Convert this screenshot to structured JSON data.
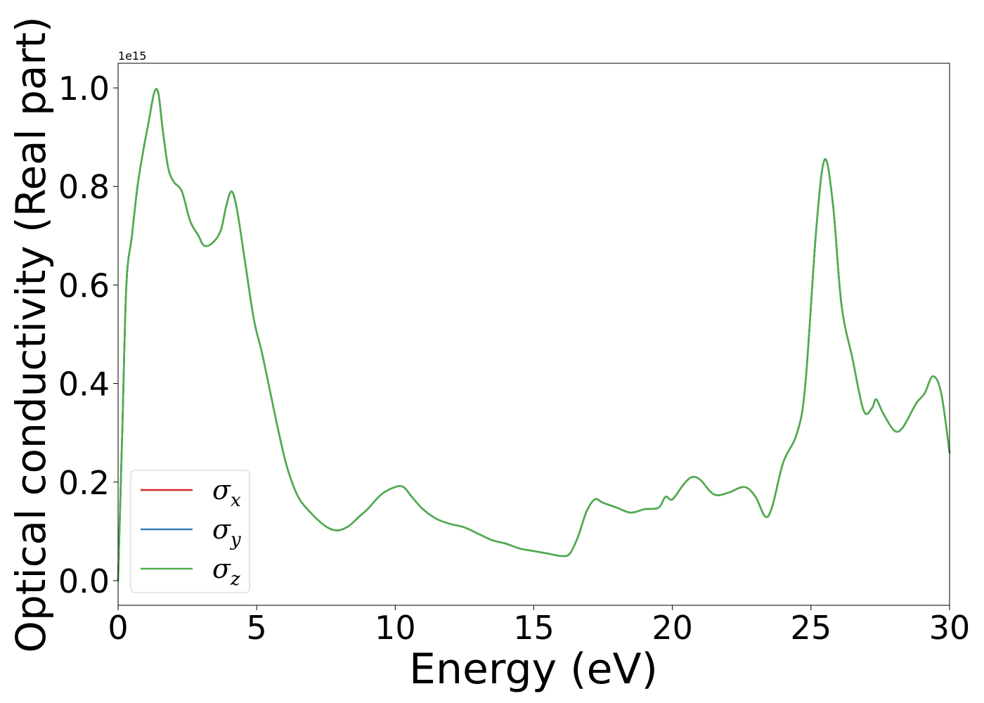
{
  "chart_data": {
    "type": "line",
    "xlabel": "Energy (eV)",
    "ylabel": "Optical conductivity (Real part)",
    "y_offset_label": "1e15",
    "xlim": [
      0,
      30
    ],
    "ylim": [
      -0.05,
      1.05
    ],
    "xticks": [
      0,
      5,
      10,
      15,
      20,
      25,
      30
    ],
    "yticks": [
      0.0,
      0.2,
      0.4,
      0.6,
      0.8,
      1.0
    ],
    "xtick_labels": [
      "0",
      "5",
      "10",
      "15",
      "20",
      "25",
      "30"
    ],
    "ytick_labels": [
      "0.0",
      "0.2",
      "0.4",
      "0.6",
      "0.8",
      "1.0"
    ],
    "grid": false,
    "legend_position": "lower-left",
    "x": [
      0,
      0.15,
      0.3,
      0.5,
      0.7,
      0.9,
      1.1,
      1.3,
      1.45,
      1.6,
      1.8,
      2.0,
      2.3,
      2.6,
      2.9,
      3.1,
      3.4,
      3.7,
      3.9,
      4.1,
      4.3,
      4.6,
      4.9,
      5.2,
      5.5,
      5.8,
      6.1,
      6.5,
      7.0,
      7.5,
      7.9,
      8.3,
      8.7,
      9.0,
      9.5,
      10.0,
      10.3,
      10.6,
      11.0,
      11.5,
      12.0,
      12.5,
      13.0,
      13.5,
      14.0,
      14.5,
      15.0,
      15.5,
      16.0,
      16.3,
      16.6,
      16.9,
      17.2,
      17.5,
      18.0,
      18.5,
      19.0,
      19.5,
      19.75,
      20.0,
      20.4,
      20.7,
      21.0,
      21.5,
      22.0,
      22.6,
      23.0,
      23.35,
      23.6,
      24.0,
      24.5,
      24.8,
      25.2,
      25.5,
      25.8,
      26.1,
      26.5,
      26.9,
      27.2,
      27.35,
      27.6,
      28.0,
      28.3,
      28.8,
      29.1,
      29.4,
      29.7,
      30.0
    ],
    "series": [
      {
        "name": "σx",
        "label_base": "σ",
        "label_sub": "x",
        "color": "#d62728",
        "values": [
          0.0,
          0.3,
          0.6,
          0.7,
          0.8,
          0.87,
          0.93,
          0.99,
          0.99,
          0.92,
          0.84,
          0.81,
          0.79,
          0.73,
          0.7,
          0.68,
          0.685,
          0.71,
          0.76,
          0.79,
          0.75,
          0.64,
          0.53,
          0.46,
          0.38,
          0.3,
          0.23,
          0.17,
          0.135,
          0.11,
          0.102,
          0.11,
          0.13,
          0.145,
          0.175,
          0.19,
          0.19,
          0.17,
          0.145,
          0.125,
          0.115,
          0.108,
          0.095,
          0.082,
          0.075,
          0.065,
          0.06,
          0.055,
          0.05,
          0.055,
          0.09,
          0.14,
          0.165,
          0.158,
          0.148,
          0.138,
          0.145,
          0.148,
          0.17,
          0.165,
          0.195,
          0.21,
          0.205,
          0.175,
          0.178,
          0.19,
          0.17,
          0.13,
          0.15,
          0.24,
          0.3,
          0.4,
          0.72,
          0.855,
          0.76,
          0.56,
          0.45,
          0.345,
          0.35,
          0.368,
          0.34,
          0.305,
          0.31,
          0.36,
          0.38,
          0.415,
          0.38,
          0.26
        ]
      },
      {
        "name": "σy",
        "label_base": "σ",
        "label_sub": "y",
        "color": "#377eb8",
        "values": [
          0.0,
          0.3,
          0.6,
          0.7,
          0.8,
          0.87,
          0.93,
          0.99,
          0.99,
          0.92,
          0.84,
          0.81,
          0.79,
          0.73,
          0.7,
          0.68,
          0.685,
          0.71,
          0.76,
          0.79,
          0.75,
          0.64,
          0.53,
          0.46,
          0.38,
          0.3,
          0.23,
          0.17,
          0.135,
          0.11,
          0.102,
          0.11,
          0.13,
          0.145,
          0.175,
          0.19,
          0.19,
          0.17,
          0.145,
          0.125,
          0.115,
          0.108,
          0.095,
          0.082,
          0.075,
          0.065,
          0.06,
          0.055,
          0.05,
          0.055,
          0.09,
          0.14,
          0.165,
          0.158,
          0.148,
          0.138,
          0.145,
          0.148,
          0.17,
          0.165,
          0.195,
          0.21,
          0.205,
          0.175,
          0.178,
          0.19,
          0.17,
          0.13,
          0.15,
          0.24,
          0.3,
          0.4,
          0.72,
          0.855,
          0.76,
          0.56,
          0.45,
          0.345,
          0.35,
          0.368,
          0.34,
          0.305,
          0.31,
          0.36,
          0.38,
          0.415,
          0.38,
          0.26
        ]
      },
      {
        "name": "σz",
        "label_base": "σ",
        "label_sub": "z",
        "color": "#4daf4a",
        "values": [
          0.0,
          0.3,
          0.6,
          0.7,
          0.8,
          0.87,
          0.93,
          0.99,
          0.99,
          0.92,
          0.84,
          0.81,
          0.79,
          0.73,
          0.7,
          0.68,
          0.685,
          0.71,
          0.76,
          0.79,
          0.75,
          0.64,
          0.53,
          0.46,
          0.38,
          0.3,
          0.23,
          0.17,
          0.135,
          0.11,
          0.102,
          0.11,
          0.13,
          0.145,
          0.175,
          0.19,
          0.19,
          0.17,
          0.145,
          0.125,
          0.115,
          0.108,
          0.095,
          0.082,
          0.075,
          0.065,
          0.06,
          0.055,
          0.05,
          0.055,
          0.09,
          0.14,
          0.165,
          0.158,
          0.148,
          0.138,
          0.145,
          0.148,
          0.17,
          0.165,
          0.195,
          0.21,
          0.205,
          0.175,
          0.178,
          0.19,
          0.17,
          0.13,
          0.15,
          0.24,
          0.3,
          0.4,
          0.72,
          0.855,
          0.76,
          0.56,
          0.45,
          0.345,
          0.35,
          0.368,
          0.34,
          0.305,
          0.31,
          0.36,
          0.38,
          0.415,
          0.38,
          0.26
        ]
      }
    ]
  }
}
